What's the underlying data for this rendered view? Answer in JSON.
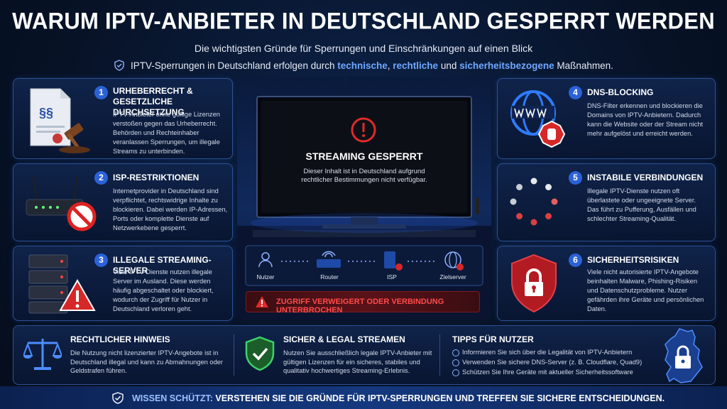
{
  "header": {
    "title": "WARUM IPTV-ANBIETER IN DEUTSCHLAND GESPERRT WERDEN",
    "subtitle": "Die wichtigsten Gründe für Sperrungen und Einschränkungen auf einen Blick",
    "intro": [
      "IPTV-Sperrungen in Deutschland erfolgen durch ",
      "technische",
      ", ",
      "rechtliche",
      " und ",
      "sicherheitsbezogene",
      " Maßnahmen."
    ]
  },
  "cards": [
    {
      "number": 1,
      "title": "URHEBERRECHT & GESETZLICHE DURCHSETZUNG",
      "text": "IPTV-Anbieter ohne gültige Lizenzen verstoßen gegen das Urheberrecht. Behörden und Rechteinhaber veranlassen Sperrungen, um illegale Streams zu unterbinden."
    },
    {
      "number": 2,
      "title": "ISP-RESTRIKTIONEN",
      "text": "Internetprovider in Deutschland sind verpflichtet, rechtswidrige Inhalte zu blockieren. Dabei werden IP-Adressen, Ports oder komplette Dienste auf Netzwerkebene gesperrt."
    },
    {
      "number": 3,
      "title": "ILLEGALE STREAMING-SERVER",
      "text": "Viele IPTV-Dienste nutzen illegale Server im Ausland. Diese werden häufig abgeschaltet oder blockiert, wodurch der Zugriff für Nutzer in Deutschland verloren geht."
    },
    {
      "number": 4,
      "title": "DNS-BLOCKING",
      "text": "DNS-Filter erkennen und blockieren die Domains von IPTV-Anbietern. Dadurch kann die Website oder der Stream nicht mehr aufgelöst und erreicht werden."
    },
    {
      "number": 5,
      "title": "INSTABILE VERBINDUNGEN",
      "text": "Illegale IPTV-Dienste nutzen oft überlastete oder ungeeignete Server. Das führt zu Pufferung, Ausfällen und schlechter Streaming-Qualität."
    },
    {
      "number": 6,
      "title": "SICHERHEITSRISIKEN",
      "text": "Viele nicht autorisierte IPTV-Angebote beinhalten Malware, Phishing-Risiken und Datenschutzprobleme. Nutzer gefährden ihre Geräte und persönlichen Daten."
    }
  ],
  "tv": {
    "title": "STREAMING GESPERRT",
    "text": "Dieser Inhalt ist in Deutschland aufgrund rechtlicher Bestimmungen nicht verfügbar."
  },
  "network": {
    "nodes": [
      "Nutzer",
      "Router",
      "ISP",
      "Zielserver"
    ],
    "warning": "ZUGRIFF VERWEIGERT ODER VERBINDUNG UNTERBROCHEN"
  },
  "bottom": {
    "legal": {
      "title": "RECHTLICHER HINWEIS",
      "text": "Die Nutzung nicht lizenzierter IPTV-Angebote ist in Deutschland illegal und kann zu Abmahnungen oder Geldstrafen führen."
    },
    "safe": {
      "title": "SICHER & LEGAL STREAMEN",
      "text": "Nutzen Sie ausschließlich legale IPTV-Anbieter mit gültigen Lizenzen für ein sicheres, stabiles und qualitativ hochwertiges Streaming-Erlebnis."
    },
    "tips": {
      "title": "TIPPS FÜR NUTZER",
      "items": [
        "Informieren Sie sich über die Legalität von IPTV-Anbietern",
        "Verwenden Sie sichere DNS-Server (z. B. Cloudflare, Quad9)",
        "Schützen Sie Ihre Geräte mit aktueller Sicherheitssoftware"
      ]
    }
  },
  "footer": [
    "WISSEN SCHÜTZT:",
    " VERSTEHEN SIE DIE GRÜNDE FÜR IPTV-SPERRUNGEN UND TREFFEN SIE SICHERE ENTSCHEIDUNGEN."
  ]
}
